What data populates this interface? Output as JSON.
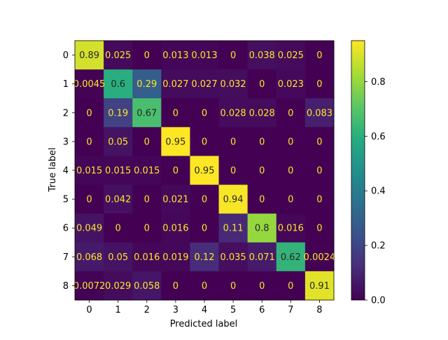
{
  "chart_data": {
    "type": "heatmap",
    "title": "",
    "xlabel": "Predicted label",
    "ylabel": "True label",
    "x_categories": [
      "0",
      "1",
      "2",
      "3",
      "4",
      "5",
      "6",
      "7",
      "8"
    ],
    "y_categories": [
      "0",
      "1",
      "2",
      "3",
      "4",
      "5",
      "6",
      "7",
      "8"
    ],
    "cell_labels": [
      [
        "0.89",
        "0.025",
        "0",
        "0.013",
        "0.013",
        "0",
        "0.038",
        "0.025",
        "0"
      ],
      [
        "0.0045",
        "0.6",
        "0.29",
        "0.027",
        "0.027",
        "0.032",
        "0",
        "0.023",
        "0"
      ],
      [
        "0",
        "0.19",
        "0.67",
        "0",
        "0",
        "0.028",
        "0.028",
        "0",
        "0.083"
      ],
      [
        "0",
        "0.05",
        "0",
        "0.95",
        "0",
        "0",
        "0",
        "0",
        "0"
      ],
      [
        "0.015",
        "0.015",
        "0.015",
        "0",
        "0.95",
        "0",
        "0",
        "0",
        "0"
      ],
      [
        "0",
        "0.042",
        "0",
        "0.021",
        "0",
        "0.94",
        "0",
        "0",
        "0"
      ],
      [
        "0.049",
        "0",
        "0",
        "0.016",
        "0",
        "0.11",
        "0.8",
        "0.016",
        "0"
      ],
      [
        "0.068",
        "0.05",
        "0.016",
        "0.019",
        "0.12",
        "0.035",
        "0.071",
        "0.62",
        "0.0024"
      ],
      [
        "0.0072",
        "0.029",
        "0.058",
        "0",
        "0",
        "0",
        "0",
        "0",
        "0.91"
      ]
    ],
    "values": [
      [
        0.89,
        0.025,
        0,
        0.013,
        0.013,
        0,
        0.038,
        0.025,
        0
      ],
      [
        0.0045,
        0.6,
        0.29,
        0.027,
        0.027,
        0.032,
        0,
        0.023,
        0
      ],
      [
        0,
        0.19,
        0.67,
        0,
        0,
        0.028,
        0.028,
        0,
        0.083
      ],
      [
        0,
        0.05,
        0,
        0.95,
        0,
        0,
        0,
        0,
        0
      ],
      [
        0.015,
        0.015,
        0.015,
        0,
        0.95,
        0,
        0,
        0,
        0
      ],
      [
        0,
        0.042,
        0,
        0.021,
        0,
        0.94,
        0,
        0,
        0
      ],
      [
        0.049,
        0,
        0,
        0.016,
        0,
        0.11,
        0.8,
        0.016,
        0
      ],
      [
        0.068,
        0.05,
        0.016,
        0.019,
        0.12,
        0.035,
        0.071,
        0.62,
        0.0024
      ],
      [
        0.0072,
        0.029,
        0.058,
        0,
        0,
        0,
        0,
        0,
        0.91
      ]
    ],
    "colorbar": {
      "min": 0.0,
      "max": 0.95,
      "ticks": [
        0.0,
        0.2,
        0.4,
        0.6,
        0.8
      ],
      "tick_labels": [
        "0.0",
        "0.2",
        "0.4",
        "0.6",
        "0.8"
      ]
    },
    "colormap": "viridis",
    "text_color_light": "#fde725",
    "text_color_dark": "#262626"
  }
}
